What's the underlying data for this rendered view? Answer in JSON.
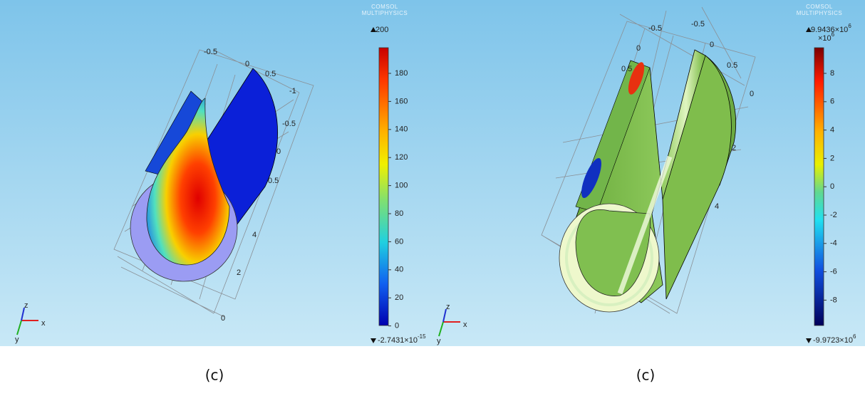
{
  "panels": [
    {
      "caption": "(c)",
      "watermark": {
        "line1": "COMSOL",
        "line2": "MULTIPHYSICS"
      },
      "colorbar": {
        "max": {
          "text": "200"
        },
        "min": {
          "text": "-2.7431×10",
          "exp": "-15"
        },
        "ticks": [
          "180",
          "160",
          "140",
          "120",
          "100",
          "80",
          "60",
          "40",
          "20",
          "0"
        ]
      },
      "axis_labels": [
        "-0.5",
        "0",
        "0.5",
        "-1",
        "-0.5",
        "0",
        "0.5",
        "4",
        "2",
        "0"
      ],
      "triad": {
        "z": "z",
        "x": "x",
        "y": "y"
      }
    },
    {
      "caption": "(c)",
      "watermark": {
        "line1": "COMSOL",
        "line2": "MULTIPHYSICS"
      },
      "colorbar": {
        "max": {
          "text": "9.9436×10",
          "exp": "6"
        },
        "scale": {
          "text": "×10",
          "exp": "6"
        },
        "min": {
          "text": "-9.9723×10",
          "exp": "6"
        },
        "ticks": [
          "8",
          "6",
          "4",
          "2",
          "0",
          "-2",
          "-4",
          "-6",
          "-8"
        ]
      },
      "axis_labels": [
        "-0.5",
        "-0.5",
        "0",
        "0",
        "0.5",
        "0.5",
        "0",
        "2",
        "4"
      ],
      "triad": {
        "z": "z",
        "x": "x",
        "y": "y"
      }
    }
  ]
}
